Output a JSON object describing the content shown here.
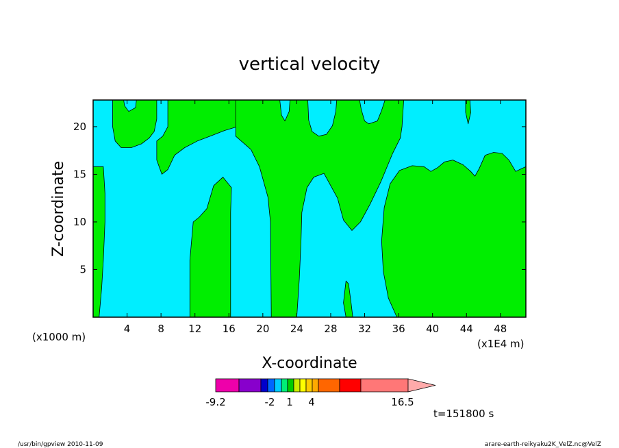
{
  "chart_data": {
    "type": "contour",
    "title": "vertical velocity",
    "xlabel": "X-coordinate",
    "ylabel": "Z-coordinate",
    "x_unit_left": "(x1000 m)",
    "x_unit_right": "(x1E4 m)",
    "xlim": [
      0,
      51
    ],
    "ylim": [
      0,
      22.8
    ],
    "xticks": [
      4,
      8,
      12,
      16,
      20,
      24,
      28,
      32,
      36,
      40,
      44,
      48
    ],
    "yticks": [
      5,
      10,
      15,
      20
    ],
    "colors": {
      "background": "#00eeff",
      "fill": "#00ee00",
      "line": "#000000"
    },
    "regions": [
      {
        "name": "left-edge",
        "points": [
          [
            0,
            0
          ],
          [
            0.7,
            0
          ],
          [
            1.0,
            3
          ],
          [
            1.2,
            6
          ],
          [
            1.4,
            10
          ],
          [
            1.4,
            13
          ],
          [
            1.2,
            15.8
          ],
          [
            0,
            15.8
          ]
        ]
      },
      {
        "name": "top-left",
        "points": [
          [
            2.3,
            22.8
          ],
          [
            2.3,
            20
          ],
          [
            2.6,
            18.5
          ],
          [
            3.3,
            17.8
          ],
          [
            4.5,
            17.8
          ],
          [
            5.7,
            18.2
          ],
          [
            6.6,
            18.8
          ],
          [
            7.2,
            19.5
          ],
          [
            7.5,
            20.8
          ],
          [
            7.5,
            22.8
          ],
          [
            5.1,
            22.8
          ],
          [
            5.0,
            22
          ],
          [
            4.2,
            21.6
          ],
          [
            3.7,
            22.2
          ],
          [
            3.6,
            22.8
          ]
        ]
      },
      {
        "name": "top-mid",
        "points": [
          [
            8.8,
            22.8
          ],
          [
            8.8,
            20
          ],
          [
            8.2,
            19
          ],
          [
            7.5,
            18.5
          ],
          [
            7.5,
            16.5
          ],
          [
            8.1,
            15
          ],
          [
            8.8,
            15.5
          ],
          [
            9.6,
            17.0
          ],
          [
            10.8,
            17.8
          ],
          [
            12.3,
            18.5
          ],
          [
            13.8,
            19.0
          ],
          [
            15.5,
            19.6
          ],
          [
            17.0,
            20.0
          ],
          [
            17.8,
            22.8
          ]
        ]
      },
      {
        "name": "mid-column",
        "points": [
          [
            11.4,
            0
          ],
          [
            11.4,
            6
          ],
          [
            11.8,
            10
          ],
          [
            12.5,
            10.5
          ],
          [
            13.4,
            11.4
          ],
          [
            14.2,
            13.8
          ],
          [
            15.3,
            14.7
          ],
          [
            16.3,
            13.6
          ],
          [
            16.2,
            11
          ],
          [
            16.2,
            0
          ]
        ]
      },
      {
        "name": "big-center",
        "points": [
          [
            16.8,
            22.8
          ],
          [
            16.8,
            19
          ],
          [
            18.6,
            17.6
          ],
          [
            19.6,
            15.8
          ],
          [
            20.6,
            12.6
          ],
          [
            20.9,
            10
          ],
          [
            21.0,
            0
          ],
          [
            24.0,
            0
          ],
          [
            24.3,
            4
          ],
          [
            24.5,
            8
          ],
          [
            24.6,
            11
          ],
          [
            25.2,
            13.6
          ],
          [
            26.0,
            14.7
          ],
          [
            27.2,
            15.1
          ],
          [
            28.8,
            12.5
          ],
          [
            29.5,
            10.2
          ],
          [
            30.5,
            9.1
          ],
          [
            31.5,
            10
          ],
          [
            32.6,
            11.8
          ],
          [
            33.9,
            14.2
          ],
          [
            35.3,
            17.2
          ],
          [
            36.2,
            18.8
          ],
          [
            36.4,
            20
          ],
          [
            36.6,
            22.8
          ],
          [
            34.4,
            22.8
          ],
          [
            34.0,
            21.7
          ],
          [
            33.5,
            20.6
          ],
          [
            32.5,
            20.3
          ],
          [
            32.0,
            20.6
          ],
          [
            31.6,
            21.8
          ],
          [
            31.4,
            22.8
          ],
          [
            28.7,
            22.8
          ],
          [
            28.6,
            21.6
          ],
          [
            28.2,
            20.1
          ],
          [
            27.5,
            19.2
          ],
          [
            26.6,
            19.0
          ],
          [
            25.8,
            19.5
          ],
          [
            25.4,
            20.7
          ],
          [
            25.3,
            22.8
          ],
          [
            23.2,
            22.8
          ],
          [
            23.1,
            21.6
          ],
          [
            22.6,
            20.6
          ],
          [
            22.2,
            21.2
          ],
          [
            22.0,
            22.8
          ]
        ]
      },
      {
        "name": "spike",
        "points": [
          [
            29.8,
            0
          ],
          [
            29.5,
            1.5
          ],
          [
            29.8,
            3.8
          ],
          [
            30.1,
            3.5
          ],
          [
            30.4,
            1.5
          ],
          [
            30.6,
            0
          ]
        ]
      },
      {
        "name": "right-block",
        "points": [
          [
            35.8,
            0
          ],
          [
            34.8,
            2
          ],
          [
            34.2,
            4.8
          ],
          [
            34.0,
            8
          ],
          [
            34.3,
            11.5
          ],
          [
            35.0,
            14
          ],
          [
            36.1,
            15.4
          ],
          [
            37.6,
            15.9
          ],
          [
            39.0,
            15.8
          ],
          [
            39.8,
            15.3
          ],
          [
            40.6,
            15.7
          ],
          [
            41.4,
            16.3
          ],
          [
            42.4,
            16.5
          ],
          [
            43.6,
            16.0
          ],
          [
            44.5,
            15.3
          ],
          [
            45.0,
            14.8
          ],
          [
            45.5,
            15.6
          ],
          [
            46.2,
            17.0
          ],
          [
            47.2,
            17.3
          ],
          [
            48.2,
            17.2
          ],
          [
            49.0,
            16.5
          ],
          [
            49.8,
            15.3
          ],
          [
            50.5,
            15.6
          ],
          [
            51,
            15.8
          ],
          [
            51,
            0
          ]
        ]
      },
      {
        "name": "top-right-tick",
        "points": [
          [
            43.9,
            22.8
          ],
          [
            43.9,
            21.5
          ],
          [
            44.2,
            20.3
          ],
          [
            44.5,
            21.5
          ],
          [
            44.4,
            22.8
          ]
        ]
      }
    ]
  },
  "colorbar": {
    "labels": [
      "-9.2",
      "-2",
      "1",
      "4",
      "16.5"
    ],
    "colors": [
      "#ee00aa",
      "#8800cc",
      "#0000cc",
      "#0066ff",
      "#00ccff",
      "#00ee77",
      "#00cc00",
      "#ccee00",
      "#ffff00",
      "#ffcc00",
      "#ffaa00",
      "#ff6600",
      "#ff0000",
      "#ff7777",
      "#ffaaaa"
    ]
  },
  "time_label": "t=151800 s",
  "footer_left": "/usr/bin/gpview   2010-11-09",
  "footer_right": "arare-earth-reikyaku2K_VelZ.nc@VelZ"
}
